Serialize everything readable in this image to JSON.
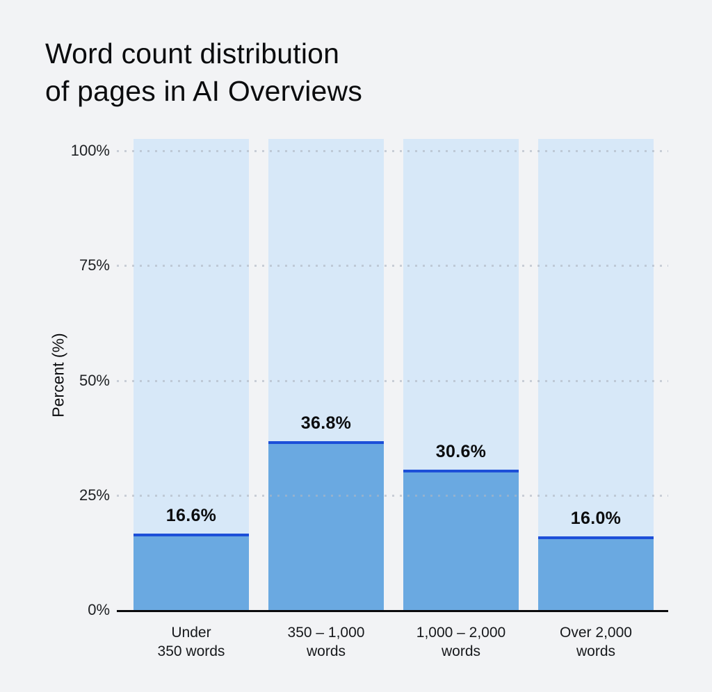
{
  "title": {
    "line1": "Word count distribution",
    "line2": "of pages in AI Overviews"
  },
  "chart_data": {
    "type": "bar",
    "title": "Word count distribution of pages in AI Overviews",
    "categories": [
      [
        "Under",
        "350 words"
      ],
      [
        "350 – 1,000",
        "words"
      ],
      [
        "1,000 – 2,000",
        "words"
      ],
      [
        "Over 2,000",
        "words"
      ]
    ],
    "values": [
      16.6,
      36.8,
      30.6,
      16.0
    ],
    "value_labels": [
      "16.6%",
      "36.8%",
      "30.6%",
      "16.0%"
    ],
    "xlabel": "",
    "ylabel": "Percent (%)",
    "yticks": [
      0,
      25,
      50,
      75,
      100
    ],
    "ytick_labels": [
      "0%",
      "25%",
      "50%",
      "75%",
      "100%"
    ],
    "ylim": [
      0,
      102.6
    ],
    "grid": "dotted horizontal lines at 25%, 50%, 75%, 100%",
    "legend": "none",
    "notes": "each column has a full-height light-blue background track; filled bar has a dark royal-blue top edge; value labels sit above each bar"
  },
  "colors": {
    "background": "#F2F3F5",
    "track": "#D7E8F8",
    "bar_fill": "#6AA9E1",
    "bar_top_edge": "#1C4FD8",
    "gridline": "#AEB6C2",
    "axis_line": "#0B0B0D",
    "text": "#0B0C0E"
  }
}
